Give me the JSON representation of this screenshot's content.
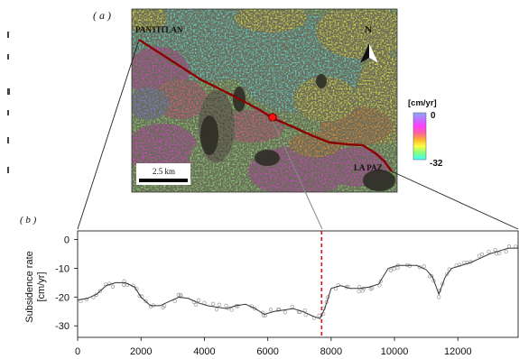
{
  "panel_a": {
    "label": "( a )",
    "start_label": "PANTITLAN",
    "end_label": "LA PAZ",
    "scale_label": "2.5 km",
    "north_label": "N",
    "colorbar": {
      "title": "[cm/yr]",
      "max_label": "0",
      "min_label": "-32",
      "colors": [
        "#8fa8ff",
        "#c070ff",
        "#ff40ff",
        "#ff60a0",
        "#ffb030",
        "#ffff40",
        "#80ff80",
        "#40ffff"
      ]
    },
    "map_colors": {
      "cyan": "#5ff5f0",
      "green": "#8ff07a",
      "yellow": "#f5ff45",
      "orange": "#ff9a30",
      "magenta": "#f03ce8",
      "pink": "#ff5a9a",
      "blue": "#7a8aff",
      "dark": "#3a3a30",
      "profile": "#8b0000"
    }
  },
  "panel_b": {
    "label": "( b )"
  },
  "chart_data": {
    "type": "line",
    "ylabel_line1": "Subsidence rate",
    "ylabel_line2": "[cm/yr]",
    "xlim": [
      0,
      13900
    ],
    "ylim": [
      -34,
      3
    ],
    "xticks": [
      0,
      2000,
      4000,
      6000,
      8000,
      10000,
      12000
    ],
    "yticks": [
      0,
      -10,
      -20,
      -30
    ],
    "xtick_labels": [
      "0",
      "2000",
      "4000",
      "6000",
      "8000",
      "10000",
      "12000"
    ],
    "ytick_labels": [
      "0",
      "-10",
      "-20",
      "-30"
    ],
    "marker_x": 7700,
    "grid": false,
    "series": [
      {
        "x": [
          0,
          300,
          600,
          900,
          1200,
          1500,
          1800,
          2000,
          2300,
          2600,
          2900,
          3200,
          3500,
          3800,
          4100,
          4400,
          4700,
          5000,
          5300,
          5600,
          5900,
          6200,
          6500,
          6800,
          7100,
          7400,
          7650,
          7800,
          8000,
          8300,
          8600,
          8900,
          9200,
          9500,
          9800,
          10100,
          10400,
          10700,
          11000,
          11200,
          11400,
          11600,
          11800,
          12100,
          12400,
          12700,
          13000,
          13300,
          13600,
          13900
        ],
        "y": [
          -21,
          -20.5,
          -19,
          -16,
          -15,
          -15,
          -16.5,
          -20,
          -23,
          -23,
          -21.5,
          -20,
          -20.5,
          -22,
          -23,
          -23.5,
          -24,
          -23,
          -22.5,
          -24,
          -26,
          -25,
          -24.5,
          -24,
          -25,
          -26.5,
          -27.5,
          -24,
          -17,
          -16,
          -17,
          -17,
          -16.5,
          -15.5,
          -10,
          -9,
          -9,
          -9,
          -10.5,
          -13,
          -19,
          -13,
          -10,
          -9,
          -8,
          -6.5,
          -5,
          -4,
          -3,
          -3
        ]
      }
    ]
  }
}
